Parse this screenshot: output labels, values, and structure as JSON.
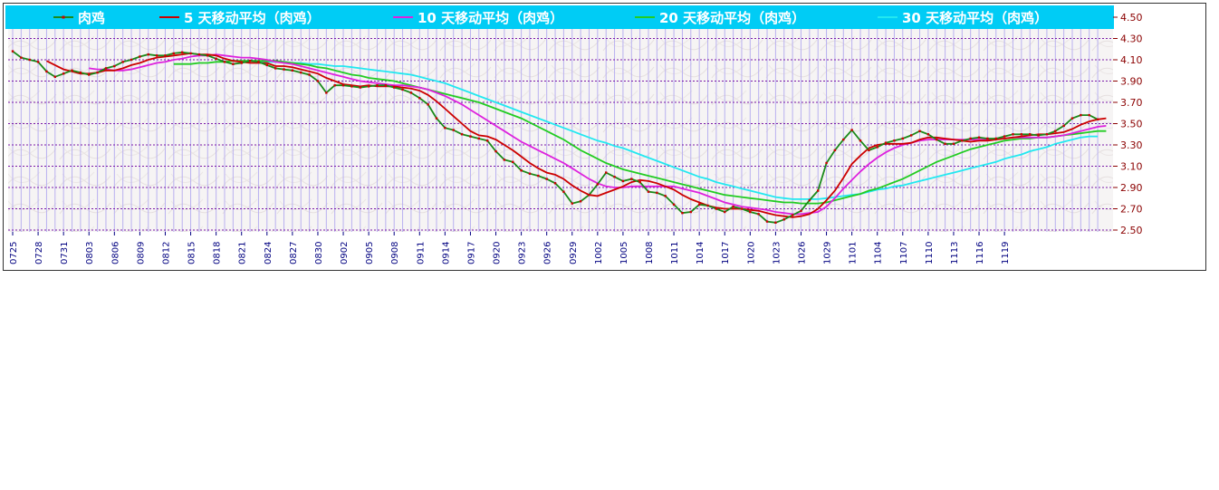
{
  "chart_data": {
    "type": "line",
    "ylim": [
      2.5,
      4.5
    ],
    "y_ticks": [
      "4.50",
      "4.30",
      "4.10",
      "3.90",
      "3.70",
      "3.50",
      "3.30",
      "3.10",
      "2.90",
      "2.70",
      "2.50"
    ],
    "x_ticks": [
      "0725",
      "0728",
      "0731",
      "0803",
      "0806",
      "0809",
      "0812",
      "0815",
      "0818",
      "0821",
      "0824",
      "0827",
      "0830",
      "0902",
      "0905",
      "0908",
      "0911",
      "0914",
      "0917",
      "0920",
      "0923",
      "0926",
      "0929",
      "1002",
      "1005",
      "1008",
      "1011",
      "1014",
      "1017",
      "1020",
      "1023",
      "1026",
      "1029",
      "1101",
      "1104",
      "1107",
      "1110",
      "1113",
      "1116",
      "1119"
    ],
    "x_ticks_every": 3,
    "grid": true,
    "legend_position": "top",
    "legend_background": "#00ccf5",
    "series": [
      {
        "name": "肉鸡",
        "color": "#1a8a1a",
        "marker_color": "#cc0000",
        "markers": true,
        "values": [
          4.18,
          4.12,
          4.1,
          4.08,
          3.99,
          3.94,
          3.97,
          4.0,
          3.98,
          3.96,
          3.98,
          4.02,
          4.04,
          4.08,
          4.1,
          4.13,
          4.15,
          4.14,
          4.14,
          4.16,
          4.17,
          4.16,
          4.15,
          4.14,
          4.11,
          4.08,
          4.06,
          4.07,
          4.09,
          4.08,
          4.05,
          4.02,
          4.01,
          4.0,
          3.98,
          3.96,
          3.9,
          3.79,
          3.86,
          3.86,
          3.85,
          3.84,
          3.85,
          3.86,
          3.86,
          3.84,
          3.82,
          3.79,
          3.74,
          3.68,
          3.55,
          3.46,
          3.44,
          3.4,
          3.38,
          3.36,
          3.34,
          3.24,
          3.16,
          3.14,
          3.06,
          3.03,
          3.01,
          2.98,
          2.94,
          2.86,
          2.75,
          2.77,
          2.83,
          2.93,
          3.04,
          3.0,
          2.96,
          2.98,
          2.95,
          2.86,
          2.85,
          2.82,
          2.74,
          2.66,
          2.67,
          2.74,
          2.73,
          2.7,
          2.67,
          2.72,
          2.7,
          2.67,
          2.65,
          2.58,
          2.57,
          2.6,
          2.64,
          2.68,
          2.78,
          2.87,
          3.13,
          3.25,
          3.35,
          3.44,
          3.34,
          3.25,
          3.28,
          3.32,
          3.34,
          3.36,
          3.39,
          3.43,
          3.4,
          3.35,
          3.31,
          3.31,
          3.34,
          3.36,
          3.37,
          3.36,
          3.36,
          3.38,
          3.4,
          3.4,
          3.4,
          3.39,
          3.4,
          3.43,
          3.48,
          3.55,
          3.58,
          3.58,
          3.54
        ]
      },
      {
        "name": "5 天移动平均（肉鸡）",
        "color": "#cc0000",
        "markers": false,
        "values": [
          null,
          null,
          null,
          null,
          4.09,
          4.05,
          4.01,
          3.99,
          3.97,
          3.97,
          3.98,
          4.0,
          4.0,
          4.02,
          4.05,
          4.07,
          4.1,
          4.12,
          4.13,
          4.14,
          4.15,
          4.16,
          4.15,
          4.15,
          4.14,
          4.11,
          4.09,
          4.08,
          4.07,
          4.07,
          4.07,
          4.04,
          4.04,
          4.03,
          4.01,
          3.99,
          3.97,
          3.93,
          3.9,
          3.87,
          3.86,
          3.85,
          3.86,
          3.85,
          3.85,
          3.85,
          3.84,
          3.83,
          3.81,
          3.77,
          3.71,
          3.64,
          3.57,
          3.5,
          3.43,
          3.39,
          3.38,
          3.35,
          3.3,
          3.25,
          3.19,
          3.13,
          3.08,
          3.04,
          3.02,
          2.98,
          2.92,
          2.87,
          2.83,
          2.82,
          2.85,
          2.88,
          2.91,
          2.95,
          2.97,
          2.96,
          2.94,
          2.91,
          2.88,
          2.83,
          2.79,
          2.76,
          2.73,
          2.71,
          2.7,
          2.7,
          2.7,
          2.69,
          2.68,
          2.66,
          2.64,
          2.63,
          2.62,
          2.63,
          2.65,
          2.7,
          2.78,
          2.87,
          2.99,
          3.12,
          3.2,
          3.27,
          3.3,
          3.31,
          3.31,
          3.31,
          3.32,
          3.35,
          3.37,
          3.37,
          3.36,
          3.35,
          3.34,
          3.33,
          3.34,
          3.34,
          3.35,
          3.36,
          3.37,
          3.38,
          3.39,
          3.4,
          3.4,
          3.41,
          3.42,
          3.45,
          3.49,
          3.52,
          3.54,
          3.55
        ]
      },
      {
        "name": "10 天移动平均（肉鸡）",
        "color": "#dd22dd",
        "markers": false,
        "values": [
          null,
          null,
          null,
          null,
          null,
          null,
          null,
          null,
          null,
          4.02,
          4.01,
          4.01,
          4.0,
          4.0,
          4.01,
          4.03,
          4.05,
          4.07,
          4.08,
          4.1,
          4.11,
          4.13,
          4.14,
          4.14,
          4.15,
          4.14,
          4.13,
          4.12,
          4.12,
          4.11,
          4.1,
          4.08,
          4.07,
          4.06,
          4.04,
          4.02,
          4.0,
          3.98,
          3.96,
          3.94,
          3.92,
          3.9,
          3.89,
          3.88,
          3.87,
          3.86,
          3.86,
          3.85,
          3.84,
          3.82,
          3.79,
          3.76,
          3.72,
          3.68,
          3.63,
          3.58,
          3.53,
          3.48,
          3.43,
          3.38,
          3.33,
          3.29,
          3.25,
          3.21,
          3.17,
          3.13,
          3.08,
          3.03,
          2.98,
          2.94,
          2.91,
          2.9,
          2.9,
          2.91,
          2.91,
          2.91,
          2.91,
          2.91,
          2.91,
          2.89,
          2.87,
          2.85,
          2.82,
          2.79,
          2.76,
          2.74,
          2.72,
          2.71,
          2.7,
          2.69,
          2.67,
          2.66,
          2.65,
          2.65,
          2.66,
          2.67,
          2.72,
          2.8,
          2.89,
          2.97,
          3.05,
          3.12,
          3.18,
          3.23,
          3.27,
          3.3,
          3.32,
          3.34,
          3.35,
          3.35,
          3.35,
          3.35,
          3.35,
          3.35,
          3.35,
          3.35,
          3.36,
          3.36,
          3.37,
          3.37,
          3.37,
          3.37,
          3.37,
          3.38,
          3.39,
          3.41,
          3.43,
          3.45,
          3.47,
          3.48
        ]
      },
      {
        "name": "20 天移动平均（肉鸡）",
        "color": "#22cc22",
        "markers": false,
        "values": [
          null,
          null,
          null,
          null,
          null,
          null,
          null,
          null,
          null,
          null,
          null,
          null,
          null,
          null,
          null,
          null,
          null,
          null,
          null,
          4.06,
          4.06,
          4.06,
          4.07,
          4.07,
          4.08,
          4.08,
          4.09,
          4.09,
          4.09,
          4.09,
          4.09,
          4.09,
          4.08,
          4.07,
          4.06,
          4.05,
          4.03,
          4.02,
          4.0,
          3.98,
          3.96,
          3.95,
          3.93,
          3.92,
          3.91,
          3.9,
          3.88,
          3.86,
          3.84,
          3.82,
          3.8,
          3.78,
          3.76,
          3.74,
          3.72,
          3.7,
          3.67,
          3.64,
          3.61,
          3.58,
          3.55,
          3.51,
          3.47,
          3.43,
          3.39,
          3.35,
          3.3,
          3.25,
          3.21,
          3.17,
          3.13,
          3.1,
          3.07,
          3.05,
          3.03,
          3.01,
          2.99,
          2.97,
          2.95,
          2.93,
          2.91,
          2.89,
          2.87,
          2.85,
          2.83,
          2.82,
          2.81,
          2.8,
          2.79,
          2.78,
          2.77,
          2.76,
          2.76,
          2.75,
          2.75,
          2.75,
          2.76,
          2.78,
          2.8,
          2.82,
          2.84,
          2.87,
          2.89,
          2.92,
          2.95,
          2.98,
          3.02,
          3.06,
          3.1,
          3.14,
          3.17,
          3.2,
          3.23,
          3.26,
          3.28,
          3.3,
          3.32,
          3.34,
          3.35,
          3.36,
          3.36,
          3.37,
          3.37,
          3.38,
          3.39,
          3.4,
          3.41,
          3.42,
          3.43,
          3.43
        ]
      },
      {
        "name": "30 天移动平均（肉鸡）",
        "color": "#22e8f0",
        "markers": false,
        "values": [
          null,
          null,
          null,
          null,
          null,
          null,
          null,
          null,
          null,
          null,
          null,
          null,
          null,
          null,
          null,
          null,
          null,
          null,
          null,
          null,
          null,
          null,
          null,
          null,
          null,
          null,
          null,
          null,
          null,
          4.08,
          4.08,
          4.08,
          4.08,
          4.07,
          4.07,
          4.06,
          4.06,
          4.05,
          4.04,
          4.04,
          4.03,
          4.02,
          4.01,
          4.0,
          3.99,
          3.98,
          3.97,
          3.96,
          3.94,
          3.92,
          3.9,
          3.88,
          3.85,
          3.82,
          3.79,
          3.76,
          3.73,
          3.7,
          3.67,
          3.64,
          3.61,
          3.58,
          3.55,
          3.52,
          3.49,
          3.46,
          3.43,
          3.4,
          3.37,
          3.34,
          3.32,
          3.29,
          3.27,
          3.24,
          3.21,
          3.18,
          3.15,
          3.12,
          3.09,
          3.06,
          3.03,
          3.0,
          2.98,
          2.95,
          2.93,
          2.91,
          2.89,
          2.87,
          2.85,
          2.83,
          2.81,
          2.8,
          2.79,
          2.79,
          2.79,
          2.79,
          2.8,
          2.81,
          2.82,
          2.83,
          2.84,
          2.86,
          2.88,
          2.89,
          2.91,
          2.92,
          2.94,
          2.96,
          2.98,
          3.0,
          3.02,
          3.04,
          3.06,
          3.08,
          3.1,
          3.12,
          3.14,
          3.17,
          3.19,
          3.21,
          3.24,
          3.26,
          3.28,
          3.31,
          3.33,
          3.35,
          3.37,
          3.38,
          3.38
        ]
      }
    ]
  }
}
